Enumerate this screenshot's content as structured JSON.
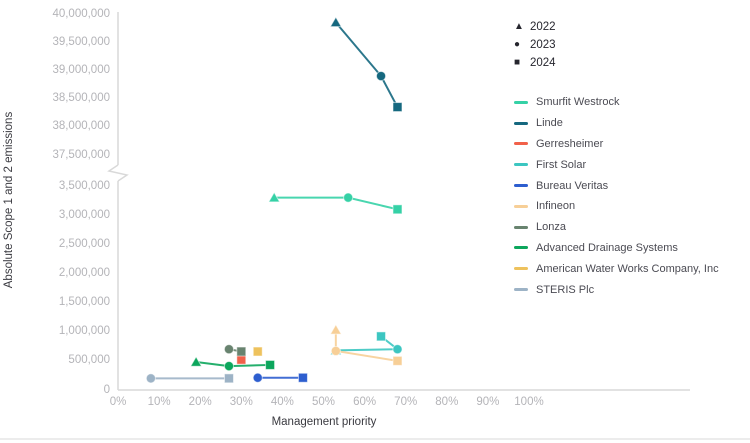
{
  "chart_data": {
    "type": "scatter",
    "title": "",
    "xlabel": "Management priority",
    "ylabel": "Absolute Scope 1 and 2 emissions",
    "x_axis": {
      "ticks_percent": [
        0,
        10,
        20,
        30,
        40,
        50,
        60,
        70,
        80,
        90,
        100
      ],
      "tick_labels": [
        "0%",
        "10%",
        "20%",
        "30%",
        "40%",
        "50%",
        "60%",
        "70%",
        "80%",
        "90%",
        "100%"
      ]
    },
    "y_axis": {
      "broken_axis": true,
      "top_segment_ticks": [
        40000000,
        39500000,
        39000000,
        38500000,
        38000000,
        37500000
      ],
      "bottom_segment_ticks": [
        3500000,
        3000000,
        2500000,
        2000000,
        1500000,
        1000000,
        500000,
        0
      ]
    },
    "year_markers": [
      {
        "year": "2022",
        "shape": "triangle"
      },
      {
        "year": "2023",
        "shape": "circle"
      },
      {
        "year": "2024",
        "shape": "square"
      }
    ],
    "marker_legend_color": "#26262e",
    "series": [
      {
        "name": "Smurfit Westrock",
        "color": "#35d1a6",
        "points": [
          {
            "year": "2022",
            "x": 38,
            "y": 3300000
          },
          {
            "year": "2023",
            "x": 56,
            "y": 3300000
          },
          {
            "year": "2024",
            "x": 68,
            "y": 3100000
          }
        ]
      },
      {
        "name": "Linde",
        "color": "#15687f",
        "points": [
          {
            "year": "2022",
            "x": 53,
            "y": 39850000
          },
          {
            "year": "2023",
            "x": 64,
            "y": 38900000
          },
          {
            "year": "2024",
            "x": 68,
            "y": 38350000
          }
        ]
      },
      {
        "name": "Gerresheimer",
        "color": "#f1614a",
        "points": [
          {
            "year": "2024",
            "x": 30,
            "y": 520000
          }
        ]
      },
      {
        "name": "First Solar",
        "color": "#3cc6c1",
        "points": [
          {
            "year": "2022",
            "x": 53,
            "y": 680000
          },
          {
            "year": "2023",
            "x": 68,
            "y": 700000
          },
          {
            "year": "2024",
            "x": 64,
            "y": 920000
          }
        ]
      },
      {
        "name": "Bureau Veritas",
        "color": "#2d5ecf",
        "points": [
          {
            "year": "2023",
            "x": 34,
            "y": 210000
          },
          {
            "year": "2024",
            "x": 45,
            "y": 210000
          }
        ]
      },
      {
        "name": "Infineon",
        "color": "#f7cf97",
        "points": [
          {
            "year": "2022",
            "x": 53,
            "y": 1030000
          },
          {
            "year": "2023",
            "x": 53,
            "y": 670000
          },
          {
            "year": "2024",
            "x": 68,
            "y": 500000
          }
        ]
      },
      {
        "name": "Lonza",
        "color": "#68836f",
        "points": [
          {
            "year": "2023",
            "x": 27,
            "y": 700000
          },
          {
            "year": "2024",
            "x": 30,
            "y": 660000
          }
        ]
      },
      {
        "name": "Advanced Drainage Systems",
        "color": "#0ca65c",
        "points": [
          {
            "year": "2022",
            "x": 19,
            "y": 480000
          },
          {
            "year": "2023",
            "x": 27,
            "y": 410000
          },
          {
            "year": "2024",
            "x": 37,
            "y": 430000
          }
        ]
      },
      {
        "name": "American Water Works Company, Inc",
        "color": "#eec25d",
        "points": [
          {
            "year": "2024",
            "x": 34,
            "y": 660000
          }
        ]
      },
      {
        "name": "STERIS Plc",
        "color": "#9db3c6",
        "points": [
          {
            "year": "2023",
            "x": 8,
            "y": 200000
          },
          {
            "year": "2024",
            "x": 27,
            "y": 200000
          }
        ]
      }
    ],
    "axis_color": "#d9d9d9",
    "tick_text_color": "#b4b4b8"
  }
}
